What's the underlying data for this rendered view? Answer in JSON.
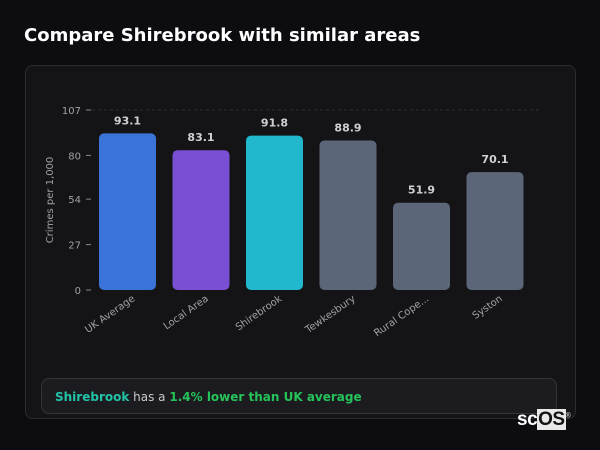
{
  "header": {
    "title": "Compare Shirebrook with similar areas"
  },
  "chart_data": {
    "type": "bar",
    "title": "",
    "xlabel": "",
    "ylabel": "Crimes per 1,000",
    "ylim": [
      0,
      107
    ],
    "yticks": [
      0,
      27,
      54,
      80,
      107
    ],
    "grid": true,
    "categories": [
      "UK Average",
      "Local Area",
      "Shirebrook",
      "Tewkesbury",
      "Rural Cope...",
      "Syston"
    ],
    "values": [
      93.1,
      83.1,
      91.8,
      88.9,
      51.9,
      70.1
    ],
    "value_labels": [
      "93.1",
      "83.1",
      "91.8",
      "88.9",
      "51.9",
      "70.1"
    ],
    "colors": [
      "#3a74d8",
      "#7b4fd4",
      "#21b8ce",
      "#5b6678",
      "#5b6678",
      "#5b6678"
    ]
  },
  "summary": {
    "area": "Shirebrook",
    "middle": " has a ",
    "comparison": "1.4% lower than UK average"
  },
  "logo": {
    "text_a": "sc",
    "text_b": "OS",
    "mark": "®"
  }
}
